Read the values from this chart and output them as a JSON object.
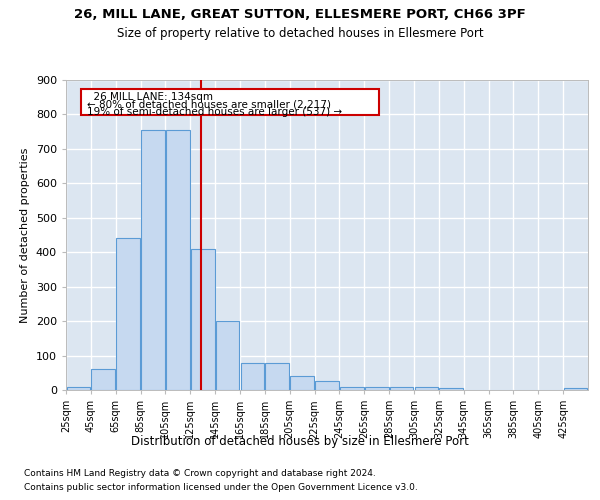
{
  "title1": "26, MILL LANE, GREAT SUTTON, ELLESMERE PORT, CH66 3PF",
  "title2": "Size of property relative to detached houses in Ellesmere Port",
  "xlabel": "Distribution of detached houses by size in Ellesmere Port",
  "ylabel": "Number of detached properties",
  "footnote1": "Contains HM Land Registry data © Crown copyright and database right 2024.",
  "footnote2": "Contains public sector information licensed under the Open Government Licence v3.0.",
  "annotation_line1": "  26 MILL LANE: 134sqm",
  "annotation_line2": "← 80% of detached houses are smaller (2,217)",
  "annotation_line3": "19% of semi-detached houses are larger (537) →",
  "bar_color": "#c6d9f0",
  "bar_edge_color": "#5b9bd5",
  "background_color": "#dce6f1",
  "grid_color": "#ffffff",
  "vline_color": "#cc0000",
  "vline_x": 134,
  "bin_edges": [
    25,
    45,
    65,
    85,
    105,
    125,
    145,
    165,
    185,
    205,
    225,
    245,
    265,
    285,
    305,
    325,
    345,
    365,
    385,
    405,
    425,
    445
  ],
  "bar_heights": [
    10,
    60,
    440,
    755,
    755,
    410,
    200,
    77,
    77,
    40,
    25,
    10,
    10,
    10,
    10,
    5,
    0,
    0,
    0,
    0,
    5
  ],
  "ylim": [
    0,
    900
  ],
  "yticks": [
    0,
    100,
    200,
    300,
    400,
    500,
    600,
    700,
    800,
    900
  ],
  "tick_labels": [
    "25sqm",
    "45sqm",
    "65sqm",
    "85sqm",
    "105sqm",
    "125sqm",
    "145sqm",
    "165sqm",
    "185sqm",
    "205sqm",
    "225sqm",
    "245sqm",
    "265sqm",
    "285sqm",
    "305sqm",
    "325sqm",
    "345sqm",
    "365sqm",
    "385sqm",
    "405sqm",
    "425sqm"
  ]
}
